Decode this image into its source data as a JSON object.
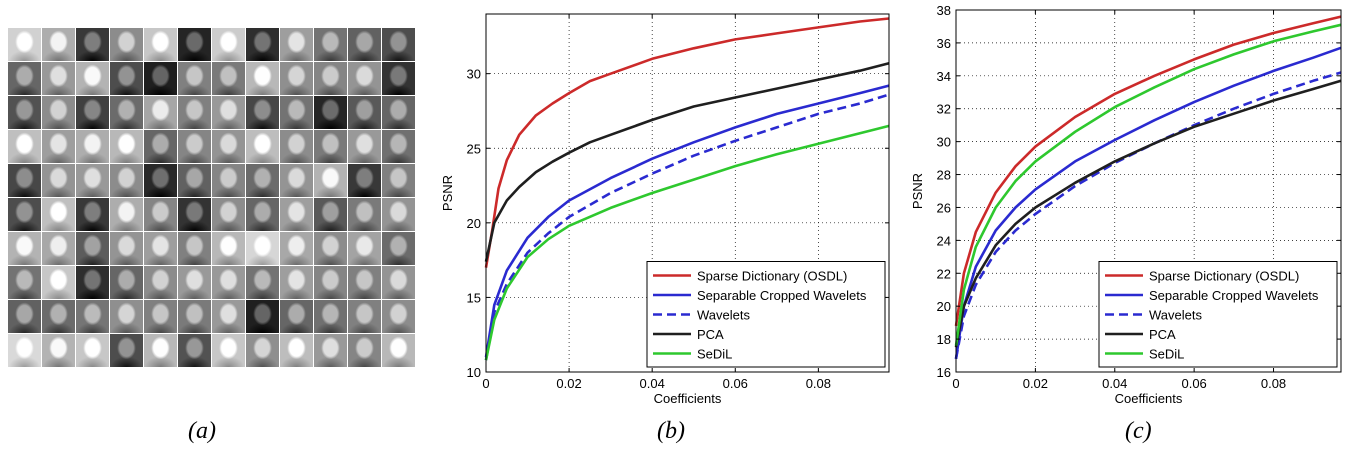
{
  "panels": {
    "a": {
      "caption": "(a)",
      "grid": {
        "rows": 10,
        "cols": 12
      },
      "tile_shades": [
        [
          0.82,
          0.68,
          0.22,
          0.55,
          0.78,
          0.14,
          0.8,
          0.18,
          0.62,
          0.45,
          0.38,
          0.3
        ],
        [
          0.4,
          0.6,
          0.7,
          0.3,
          0.12,
          0.5,
          0.48,
          0.72,
          0.56,
          0.52,
          0.58,
          0.2
        ],
        [
          0.32,
          0.55,
          0.25,
          0.42,
          0.65,
          0.5,
          0.6,
          0.28,
          0.45,
          0.15,
          0.35,
          0.4
        ],
        [
          0.75,
          0.62,
          0.68,
          0.72,
          0.4,
          0.52,
          0.58,
          0.74,
          0.55,
          0.48,
          0.6,
          0.44
        ],
        [
          0.28,
          0.58,
          0.6,
          0.55,
          0.16,
          0.38,
          0.52,
          0.42,
          0.58,
          0.7,
          0.22,
          0.5
        ],
        [
          0.3,
          0.75,
          0.22,
          0.68,
          0.52,
          0.2,
          0.55,
          0.4,
          0.62,
          0.35,
          0.48,
          0.58
        ],
        [
          0.7,
          0.66,
          0.36,
          0.58,
          0.62,
          0.5,
          0.72,
          0.84,
          0.66,
          0.55,
          0.64,
          0.42
        ],
        [
          0.45,
          0.78,
          0.18,
          0.4,
          0.55,
          0.6,
          0.6,
          0.45,
          0.62,
          0.52,
          0.5,
          0.58
        ],
        [
          0.38,
          0.42,
          0.46,
          0.56,
          0.5,
          0.48,
          0.6,
          0.12,
          0.4,
          0.44,
          0.5,
          0.55
        ],
        [
          0.85,
          0.7,
          0.78,
          0.3,
          0.72,
          0.32,
          0.78,
          0.56,
          0.74,
          0.6,
          0.52,
          0.72
        ]
      ]
    },
    "b": {
      "caption": "(b)"
    },
    "c": {
      "caption": "(c)"
    }
  },
  "colors": {
    "Sparse Dictionary (OSDL)": "#cc2a2a",
    "Separable Cropped Wavelets": "#2a2ad0",
    "Wavelets": "#2a2ad0",
    "PCA": "#1f1f1f",
    "SeDiL": "#2ec82e"
  },
  "chart_data": [
    {
      "type": "line",
      "xlabel": "Coefficients",
      "ylabel": "PSNR",
      "xlim": [
        0,
        0.097
      ],
      "ylim": [
        10,
        34
      ],
      "xticks": [
        0,
        0.02,
        0.04,
        0.06,
        0.08
      ],
      "xtick_labels": [
        "0",
        "0.02",
        "0.04",
        "0.06",
        "0.08"
      ],
      "yticks": [
        10,
        15,
        20,
        25,
        30
      ],
      "ytick_labels": [
        "10",
        "15",
        "20",
        "25",
        "30"
      ],
      "grid": true,
      "legend_position": "bottom-right",
      "series": [
        {
          "name": "Sparse Dictionary (OSDL)",
          "style": "solid",
          "x": [
            0,
            0.0015,
            0.003,
            0.005,
            0.008,
            0.012,
            0.016,
            0.02,
            0.025,
            0.03,
            0.04,
            0.05,
            0.06,
            0.07,
            0.08,
            0.09,
            0.097
          ],
          "y": [
            17.0,
            19.5,
            22.3,
            24.2,
            25.9,
            27.2,
            28.0,
            28.7,
            29.5,
            30.0,
            31.0,
            31.7,
            32.3,
            32.7,
            33.1,
            33.5,
            33.7
          ]
        },
        {
          "name": "Separable Cropped Wavelets",
          "style": "solid",
          "x": [
            0,
            0.002,
            0.005,
            0.01,
            0.015,
            0.02,
            0.03,
            0.04,
            0.05,
            0.06,
            0.07,
            0.08,
            0.09,
            0.097
          ],
          "y": [
            11.0,
            14.5,
            16.8,
            19.0,
            20.4,
            21.5,
            23.0,
            24.3,
            25.4,
            26.4,
            27.3,
            28.0,
            28.7,
            29.2
          ]
        },
        {
          "name": "Wavelets",
          "style": "dashed",
          "x": [
            0,
            0.002,
            0.005,
            0.01,
            0.015,
            0.02,
            0.03,
            0.04,
            0.05,
            0.06,
            0.07,
            0.08,
            0.09,
            0.097
          ],
          "y": [
            10.8,
            14.0,
            15.9,
            18.0,
            19.3,
            20.4,
            22.0,
            23.3,
            24.5,
            25.5,
            26.4,
            27.3,
            28.0,
            28.6
          ]
        },
        {
          "name": "PCA",
          "style": "solid",
          "x": [
            0,
            0.002,
            0.005,
            0.008,
            0.012,
            0.016,
            0.02,
            0.025,
            0.03,
            0.04,
            0.05,
            0.06,
            0.07,
            0.08,
            0.09,
            0.097
          ],
          "y": [
            17.4,
            20.0,
            21.5,
            22.4,
            23.4,
            24.1,
            24.7,
            25.4,
            25.9,
            26.9,
            27.8,
            28.4,
            29.0,
            29.6,
            30.2,
            30.7
          ]
        },
        {
          "name": "SeDiL",
          "style": "solid",
          "x": [
            0,
            0.002,
            0.005,
            0.01,
            0.015,
            0.02,
            0.03,
            0.04,
            0.05,
            0.06,
            0.07,
            0.08,
            0.09,
            0.097
          ],
          "y": [
            10.8,
            13.5,
            15.6,
            17.7,
            18.9,
            19.8,
            21.0,
            22.0,
            22.9,
            23.8,
            24.6,
            25.3,
            26.0,
            26.5
          ]
        }
      ]
    },
    {
      "type": "line",
      "xlabel": "Coefficients",
      "ylabel": "PSNR",
      "xlim": [
        0,
        0.097
      ],
      "ylim": [
        16,
        38
      ],
      "xticks": [
        0,
        0.02,
        0.04,
        0.06,
        0.08
      ],
      "xtick_labels": [
        "0",
        "0.02",
        "0.04",
        "0.06",
        "0.08"
      ],
      "yticks": [
        16,
        18,
        20,
        22,
        24,
        26,
        28,
        30,
        32,
        34,
        36,
        38
      ],
      "ytick_labels": [
        "16",
        "18",
        "20",
        "22",
        "24",
        "26",
        "28",
        "30",
        "32",
        "34",
        "36",
        "38"
      ],
      "grid": true,
      "legend_position": "bottom-right",
      "series": [
        {
          "name": "Sparse Dictionary (OSDL)",
          "style": "solid",
          "x": [
            0,
            0.002,
            0.005,
            0.01,
            0.015,
            0.02,
            0.03,
            0.04,
            0.05,
            0.06,
            0.07,
            0.08,
            0.09,
            0.097
          ],
          "y": [
            18.8,
            22.0,
            24.5,
            26.9,
            28.5,
            29.7,
            31.5,
            32.9,
            34.0,
            35.0,
            35.9,
            36.6,
            37.2,
            37.6
          ]
        },
        {
          "name": "Separable Cropped Wavelets",
          "style": "solid",
          "x": [
            0,
            0.002,
            0.005,
            0.01,
            0.015,
            0.02,
            0.03,
            0.04,
            0.05,
            0.06,
            0.07,
            0.08,
            0.09,
            0.097
          ],
          "y": [
            16.8,
            20.0,
            22.4,
            24.6,
            26.0,
            27.1,
            28.8,
            30.1,
            31.3,
            32.4,
            33.4,
            34.3,
            35.1,
            35.7
          ]
        },
        {
          "name": "Wavelets",
          "style": "dashed",
          "x": [
            0,
            0.002,
            0.005,
            0.01,
            0.015,
            0.02,
            0.03,
            0.04,
            0.05,
            0.06,
            0.07,
            0.08,
            0.09,
            0.097
          ],
          "y": [
            16.8,
            19.4,
            21.3,
            23.3,
            24.6,
            25.6,
            27.3,
            28.7,
            29.9,
            31.0,
            32.0,
            32.9,
            33.7,
            34.2
          ]
        },
        {
          "name": "PCA",
          "style": "solid",
          "x": [
            0,
            0.002,
            0.005,
            0.01,
            0.015,
            0.02,
            0.03,
            0.04,
            0.05,
            0.06,
            0.07,
            0.08,
            0.09,
            0.097
          ],
          "y": [
            17.5,
            20.0,
            21.7,
            23.7,
            25.0,
            26.0,
            27.5,
            28.8,
            29.9,
            30.9,
            31.7,
            32.5,
            33.2,
            33.7
          ]
        },
        {
          "name": "SeDiL",
          "style": "solid",
          "x": [
            0,
            0.002,
            0.005,
            0.01,
            0.015,
            0.02,
            0.03,
            0.04,
            0.05,
            0.06,
            0.07,
            0.08,
            0.09,
            0.097
          ],
          "y": [
            17.6,
            21.0,
            23.6,
            26.0,
            27.6,
            28.8,
            30.6,
            32.1,
            33.3,
            34.4,
            35.3,
            36.1,
            36.7,
            37.1
          ]
        }
      ]
    }
  ]
}
